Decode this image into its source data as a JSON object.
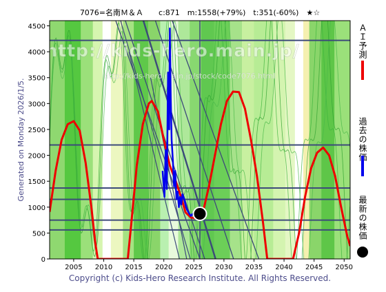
{
  "header": {
    "title": "7076=名南Ｍ＆Ａ　　c:871　m:1558(+79%)　t:351(-60%)　★☆"
  },
  "side_label": "Generated on Monday 2026/1/5.",
  "footer": "Copyright (c) Kids-Hero Research Institute. All Rights Reserved.",
  "watermark": {
    "line1": "http://kids-hero.main.jp/",
    "line2": "http://kids-hero.main.jp/stock/code7076.html"
  },
  "legend": [
    {
      "label": "ＡＩ予測",
      "color": "#ee0000",
      "marker": "line"
    },
    {
      "label": "過去の株価",
      "color": "#0000ee",
      "marker": "line"
    },
    {
      "label": "最新の株価",
      "color": "#000000",
      "marker": "dot"
    }
  ],
  "chart_data": {
    "type": "line",
    "title": "7076=名南Ｍ＆Ａ　　c:871　m:1558(+79%)　t:351(-60%)　★☆",
    "xlabel": "",
    "ylabel": "",
    "xlim": [
      2001,
      2051
    ],
    "ylim": [
      0,
      4600
    ],
    "x_ticks": [
      2005,
      2010,
      2015,
      2020,
      2025,
      2030,
      2035,
      2040,
      2045,
      2050
    ],
    "y_ticks": [
      0,
      500,
      1000,
      1500,
      2000,
      2500,
      3000,
      3500,
      4000,
      4500
    ],
    "grid": false,
    "horizontal_lines": [
      4220,
      2200,
      1370,
      1150,
      750,
      560
    ],
    "current_year_line": 2026.0,
    "series": [
      {
        "name": "ＡＩ予測",
        "color": "#ee0000",
        "points": [
          [
            2001,
            910
          ],
          [
            2002,
            1700
          ],
          [
            2003,
            2300
          ],
          [
            2004,
            2600
          ],
          [
            2005,
            2660
          ],
          [
            2006,
            2480
          ],
          [
            2007,
            1850
          ],
          [
            2008,
            950
          ],
          [
            2008.6,
            300
          ],
          [
            2009,
            0
          ],
          [
            2014,
            0
          ],
          [
            2014.6,
            700
          ],
          [
            2015.5,
            1800
          ],
          [
            2016.5,
            2600
          ],
          [
            2017.5,
            3000
          ],
          [
            2018,
            3050
          ],
          [
            2019,
            2850
          ],
          [
            2020,
            2300
          ],
          [
            2021,
            1800
          ],
          [
            2022,
            1500
          ],
          [
            2023,
            1150
          ],
          [
            2023.6,
            900
          ],
          [
            2024.5,
            800
          ],
          [
            2025.5,
            780
          ],
          [
            2026,
            790
          ],
          [
            2026.5,
            900
          ],
          [
            2027.5,
            1400
          ],
          [
            2028.5,
            2000
          ],
          [
            2029.5,
            2600
          ],
          [
            2030.5,
            3050
          ],
          [
            2031.5,
            3230
          ],
          [
            2032.5,
            3220
          ],
          [
            2033.5,
            2900
          ],
          [
            2034.5,
            2300
          ],
          [
            2035.5,
            1600
          ],
          [
            2036.5,
            700
          ],
          [
            2037.2,
            0
          ],
          [
            2041.5,
            0
          ],
          [
            2042.5,
            500
          ],
          [
            2043.5,
            1200
          ],
          [
            2044.5,
            1750
          ],
          [
            2045.5,
            2050
          ],
          [
            2046.5,
            2150
          ],
          [
            2047.5,
            2000
          ],
          [
            2048.5,
            1600
          ],
          [
            2049.5,
            1000
          ],
          [
            2050.5,
            450
          ],
          [
            2051,
            250
          ]
        ]
      },
      {
        "name": "過去の株価",
        "color": "#0000ee",
        "points": [
          [
            2019.8,
            1700
          ],
          [
            2020.1,
            1200
          ],
          [
            2020.3,
            2100
          ],
          [
            2020.5,
            1350
          ],
          [
            2020.7,
            3600
          ],
          [
            2020.9,
            2500
          ],
          [
            2021.0,
            4450
          ],
          [
            2021.15,
            3100
          ],
          [
            2021.3,
            2300
          ],
          [
            2021.5,
            1900
          ],
          [
            2021.7,
            1400
          ],
          [
            2021.9,
            1700
          ],
          [
            2022.1,
            1150
          ],
          [
            2022.3,
            1300
          ],
          [
            2022.5,
            1000
          ],
          [
            2022.7,
            1200
          ],
          [
            2022.9,
            1050
          ],
          [
            2023.1,
            1250
          ],
          [
            2023.3,
            1180
          ],
          [
            2023.5,
            1100
          ],
          [
            2023.7,
            1000
          ],
          [
            2023.9,
            940
          ],
          [
            2024.2,
            880
          ],
          [
            2024.5,
            830
          ],
          [
            2024.8,
            870
          ],
          [
            2025.1,
            800
          ],
          [
            2025.5,
            790
          ],
          [
            2025.8,
            820
          ]
        ]
      }
    ],
    "latest_point": {
      "x": 2026.0,
      "y": 871
    }
  }
}
